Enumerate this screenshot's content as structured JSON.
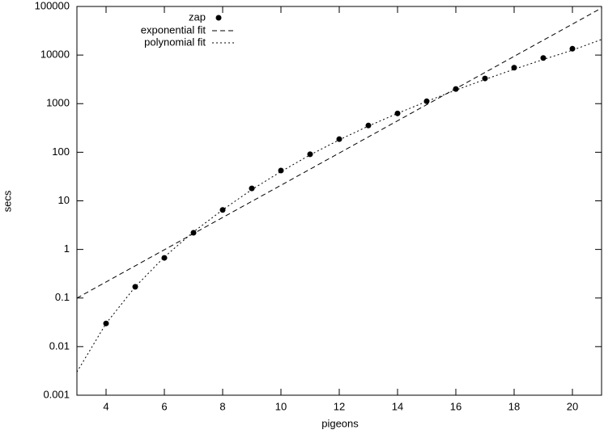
{
  "chart_data": {
    "type": "scatter",
    "x_label": "pigeons",
    "y_label": "secs",
    "xlim": [
      3,
      21
    ],
    "ylim": [
      0.001,
      100000
    ],
    "log_y": true,
    "xticks": [
      4,
      6,
      8,
      10,
      12,
      14,
      16,
      18,
      20
    ],
    "yticks": [
      0.001,
      0.01,
      0.1,
      1,
      10,
      100,
      1000,
      10000,
      100000
    ],
    "legend": "top-right",
    "series": [
      {
        "name": "zap",
        "style": "points",
        "color": "#000000",
        "x": [
          4,
          5,
          6,
          7,
          8,
          9,
          10,
          11,
          12,
          13,
          14,
          15,
          16,
          17,
          18,
          19,
          20
        ],
        "values": [
          0.03,
          0.17,
          0.67,
          2.2,
          6.5,
          18,
          42,
          91,
          186,
          355,
          630,
          1120,
          2000,
          3300,
          5500,
          8700,
          13500
        ]
      },
      {
        "name": "exponential fit",
        "style": "dashed",
        "color": "#000000",
        "x": [
          3,
          21
        ],
        "values": [
          0.1,
          93000
        ]
      },
      {
        "name": "polynomial fit",
        "style": "dotted",
        "color": "#000000",
        "x": [
          3,
          4,
          5,
          6,
          7,
          8,
          9,
          10,
          11,
          12,
          13,
          14,
          15,
          16,
          17,
          18,
          19,
          20,
          21
        ],
        "values": [
          0.003,
          0.03,
          0.17,
          0.7,
          2.3,
          6.5,
          17,
          40,
          88,
          180,
          345,
          630,
          1110,
          1900,
          3150,
          5100,
          8100,
          12600,
          21000
        ]
      }
    ]
  }
}
